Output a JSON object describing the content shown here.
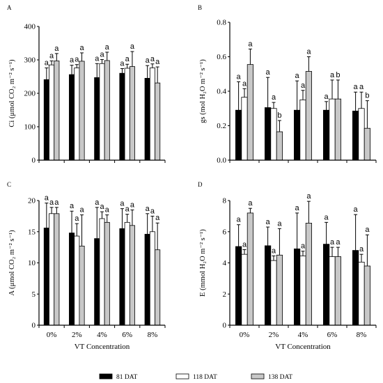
{
  "categories": [
    "0%",
    "2%",
    "4%",
    "6%",
    "8%"
  ],
  "xlabel": "VT Concentration",
  "legend": [
    {
      "label": "81 DAT",
      "color": "#000000"
    },
    {
      "label": "118 DAT",
      "color": "#ffffff"
    },
    {
      "label": "138 DAT",
      "color": "#c8c8c8"
    }
  ],
  "colors": {
    "s81": "#000000",
    "s118": "#ffffff",
    "s138": "#c8c8c8",
    "stroke": "#000000"
  },
  "chart_data": [
    {
      "panel": "A",
      "type": "bar",
      "ylabel": "Ci (μmol CO₂ m⁻² s⁻¹)",
      "ylim": [
        0,
        400
      ],
      "yticks": [
        0,
        100,
        200,
        300,
        400
      ],
      "tick_decimals": 0,
      "categories": [
        "0%",
        "2%",
        "4%",
        "6%",
        "8%"
      ],
      "series": [
        {
          "name": "81 DAT",
          "values": [
            241,
            256,
            247,
            260,
            245
          ],
          "err": [
            35,
            28,
            42,
            14,
            38
          ],
          "sig": [
            "a",
            "a",
            "a",
            "a",
            "a"
          ]
        },
        {
          "name": "118 DAT",
          "values": [
            285,
            276,
            289,
            275,
            276
          ],
          "err": [
            12,
            10,
            12,
            12,
            12
          ],
          "sig": [
            "a",
            "a",
            "a",
            "a",
            "a"
          ]
        },
        {
          "name": "138 DAT",
          "values": [
            297,
            296,
            298,
            280,
            231
          ],
          "err": [
            22,
            25,
            25,
            45,
            48
          ],
          "sig": [
            "a",
            "a",
            "a",
            "a",
            "a"
          ]
        }
      ]
    },
    {
      "panel": "B",
      "type": "bar",
      "ylabel": "gs (mol H₂O m⁻² s⁻¹)",
      "ylim": [
        0,
        0.8
      ],
      "yticks": [
        0.0,
        0.2,
        0.4,
        0.6,
        0.8
      ],
      "tick_decimals": 1,
      "categories": [
        "0%",
        "2%",
        "4%",
        "6%",
        "8%"
      ],
      "series": [
        {
          "name": "81 DAT",
          "values": [
            0.29,
            0.305,
            0.29,
            0.29,
            0.285
          ],
          "err": [
            0.165,
            0.175,
            0.17,
            0.05,
            0.11
          ],
          "sig": [
            "a",
            "a",
            "a",
            "a",
            "a"
          ]
        },
        {
          "name": "118 DAT",
          "values": [
            0.365,
            0.3,
            0.35,
            0.355,
            0.3
          ],
          "err": [
            0.05,
            0.035,
            0.055,
            0.11,
            0.095
          ],
          "sig": [
            "a",
            "a",
            "a",
            "a",
            "a"
          ]
        },
        {
          "name": "138 DAT",
          "values": [
            0.555,
            0.165,
            0.515,
            0.355,
            0.185
          ],
          "err": [
            0.09,
            0.065,
            0.085,
            0.11,
            0.16
          ],
          "sig": [
            "a",
            "b",
            "a",
            "b",
            "b"
          ]
        }
      ]
    },
    {
      "panel": "C",
      "type": "bar",
      "ylabel": "A (μmol CO₂ m⁻² s⁻¹)",
      "ylim": [
        0,
        20
      ],
      "yticks": [
        0,
        5,
        10,
        15,
        20
      ],
      "tick_decimals": 0,
      "categories": [
        "0%",
        "2%",
        "4%",
        "6%",
        "8%"
      ],
      "series": [
        {
          "name": "81 DAT",
          "values": [
            15.6,
            14.8,
            13.9,
            15.5,
            14.6
          ],
          "err": [
            4.0,
            3.5,
            5.0,
            3.2,
            3.3
          ],
          "sig": [
            "a",
            "a",
            "a",
            "a",
            "a"
          ]
        },
        {
          "name": "118 DAT",
          "values": [
            17.9,
            14.3,
            17.1,
            16.5,
            15.0
          ],
          "err": [
            1.0,
            2.0,
            1.1,
            1.3,
            2.5
          ],
          "sig": [
            "a",
            "a",
            "a",
            "a",
            "a"
          ]
        },
        {
          "name": "138 DAT",
          "values": [
            17.9,
            12.7,
            16.5,
            16.0,
            12.1
          ],
          "err": [
            1.0,
            5.0,
            1.2,
            2.5,
            4.3
          ],
          "sig": [
            "a",
            "a",
            "a",
            "a",
            "a"
          ]
        }
      ]
    },
    {
      "panel": "D",
      "type": "bar",
      "ylabel": "E (mmol H₂O m⁻² s⁻¹)",
      "ylim": [
        0,
        8
      ],
      "yticks": [
        0,
        2,
        4,
        6,
        8
      ],
      "tick_decimals": 0,
      "categories": [
        "0%",
        "2%",
        "4%",
        "6%",
        "8%"
      ],
      "series": [
        {
          "name": "81 DAT",
          "values": [
            5.05,
            5.1,
            4.9,
            5.2,
            4.8
          ],
          "err": [
            1.4,
            1.2,
            2.3,
            1.4,
            2.3
          ],
          "sig": [
            "a",
            "a",
            "a",
            "a",
            "a"
          ]
        },
        {
          "name": "118 DAT",
          "values": [
            4.55,
            4.15,
            4.45,
            4.4,
            4.05
          ],
          "err": [
            0.3,
            0.3,
            0.3,
            0.6,
            0.5
          ],
          "sig": [
            "a",
            "a",
            "a",
            "a",
            "a"
          ]
        },
        {
          "name": "138 DAT",
          "values": [
            7.2,
            4.5,
            6.55,
            4.4,
            3.8
          ],
          "err": [
            0.3,
            1.7,
            1.4,
            0.6,
            2.0
          ],
          "sig": [
            "a",
            "a",
            "a",
            "a",
            "a"
          ]
        }
      ]
    }
  ]
}
